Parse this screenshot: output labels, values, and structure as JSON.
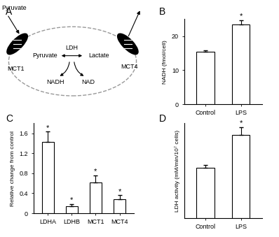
{
  "diagram": {
    "panel": "A",
    "outside": "Pyruvate",
    "transporters": {
      "in": "MCT1",
      "out": "MCT4"
    },
    "inside": {
      "substrate": "Pyruvate",
      "product": "Lactate",
      "enzyme": "LDH",
      "cofactors": [
        "NADH",
        "NAD"
      ]
    }
  },
  "chart_data": [
    {
      "panel": "B",
      "type": "bar",
      "y_label": "NADH (fmol/cell)",
      "categories": [
        "Control",
        "LPS"
      ],
      "values": [
        15.4,
        23.4
      ],
      "errors": [
        0.4,
        1.2
      ],
      "color": "#ffffff",
      "ylim": [
        0,
        25
      ],
      "yticks": [
        0,
        10,
        20
      ],
      "annotations": [
        {
          "category": "LPS",
          "text": "*"
        }
      ]
    },
    {
      "panel": "C",
      "type": "bar",
      "y_label": "Relative change from control",
      "categories": [
        "LDHA",
        "LDHB",
        "MCT1",
        "MCT4"
      ],
      "values": [
        1.43,
        0.14,
        0.61,
        0.28
      ],
      "errors": [
        0.2,
        0.05,
        0.15,
        0.08
      ],
      "color": "#ffffff",
      "ylim": [
        0,
        1.8
      ],
      "yticks": [
        0,
        0.4,
        0.8,
        1.2,
        1.6
      ],
      "annotations": [
        {
          "category": "LDHA",
          "text": "*"
        },
        {
          "category": "LDHB",
          "text": "*"
        },
        {
          "category": "MCT1",
          "text": "*"
        },
        {
          "category": "MCT4",
          "text": "*"
        }
      ]
    },
    {
      "panel": "D",
      "type": "bar",
      "y_label": "LDH activity (mM/min/10⁷ cells)",
      "categories": [
        "Control",
        "LPS"
      ],
      "values": [
        0.53,
        0.88
      ],
      "errors": [
        0.03,
        0.08
      ],
      "color": "#ffffff",
      "ylim": [
        0,
        1
      ],
      "tick_labels": "x",
      "annotations": [
        {
          "category": "LPS",
          "text": "*"
        }
      ]
    }
  ]
}
